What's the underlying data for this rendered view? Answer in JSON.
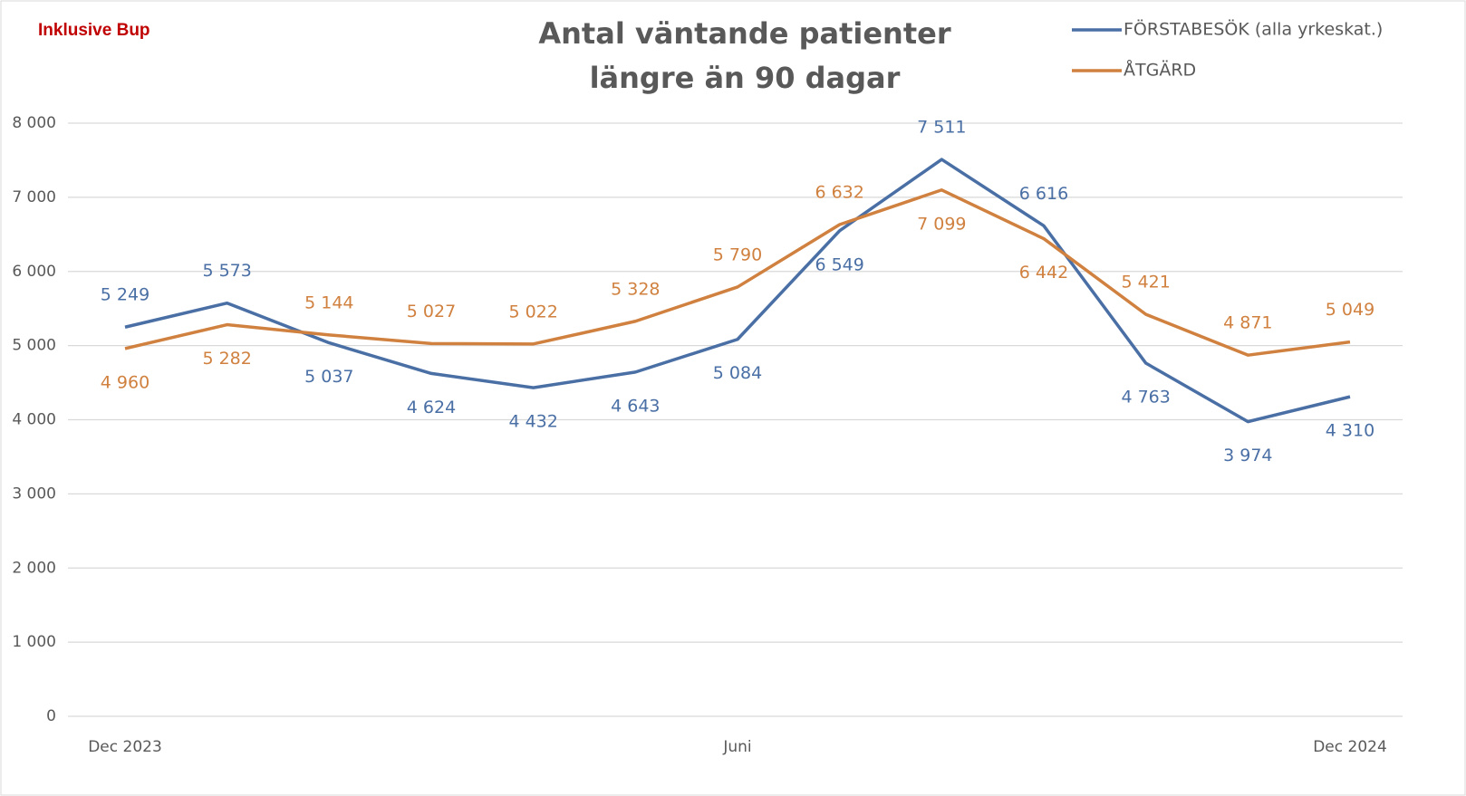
{
  "chart_data": {
    "type": "line",
    "title": [
      "Antal väntande patienter",
      "längre än 90 dagar"
    ],
    "annotation": "Inklusive Bup",
    "categories": [
      "Dec 2023",
      null,
      null,
      null,
      null,
      null,
      "Juni",
      null,
      null,
      null,
      null,
      null,
      "Dec 2024"
    ],
    "series": [
      {
        "name": "FÖRSTABESÖK (alla yrkeskat.)",
        "color": "#4a6fa5",
        "values": [
          5249,
          5573,
          5037,
          4624,
          4432,
          4643,
          5084,
          6549,
          7511,
          6616,
          4763,
          3974,
          4310
        ],
        "value_labels": [
          "5 249",
          "5 573",
          "5 037",
          "4 624",
          "4 432",
          "4 643",
          "5 084",
          "6 549",
          "7 511",
          "6 616",
          "4 763",
          "3 974",
          "4 310"
        ]
      },
      {
        "name": "ÅTGÄRD",
        "color": "#d0813f",
        "values": [
          4960,
          5282,
          5144,
          5027,
          5022,
          5328,
          5790,
          6632,
          7099,
          6442,
          5421,
          4871,
          5049
        ],
        "value_labels": [
          "4 960",
          "5 282",
          "5 144",
          "5 027",
          "5 022",
          "5 328",
          "5 790",
          "6 632",
          "7 099",
          "6 442",
          "5 421",
          "4 871",
          "5 049"
        ]
      }
    ],
    "ylim": [
      0,
      8000
    ],
    "yticks": [
      0,
      {
        "value": 1000,
        "label": "1 000"
      },
      {
        "value": 2000,
        "label": "2 000"
      },
      {
        "value": 3000,
        "label": "3 000"
      },
      {
        "value": 4000,
        "label": "4 000"
      },
      {
        "value": 5000,
        "label": "5 000"
      },
      {
        "value": 6000,
        "label": "6 000"
      },
      {
        "value": 7000,
        "label": "7 000"
      },
      {
        "value": 8000,
        "label": "8 000"
      }
    ],
    "grid": true,
    "legend": "top-right"
  }
}
